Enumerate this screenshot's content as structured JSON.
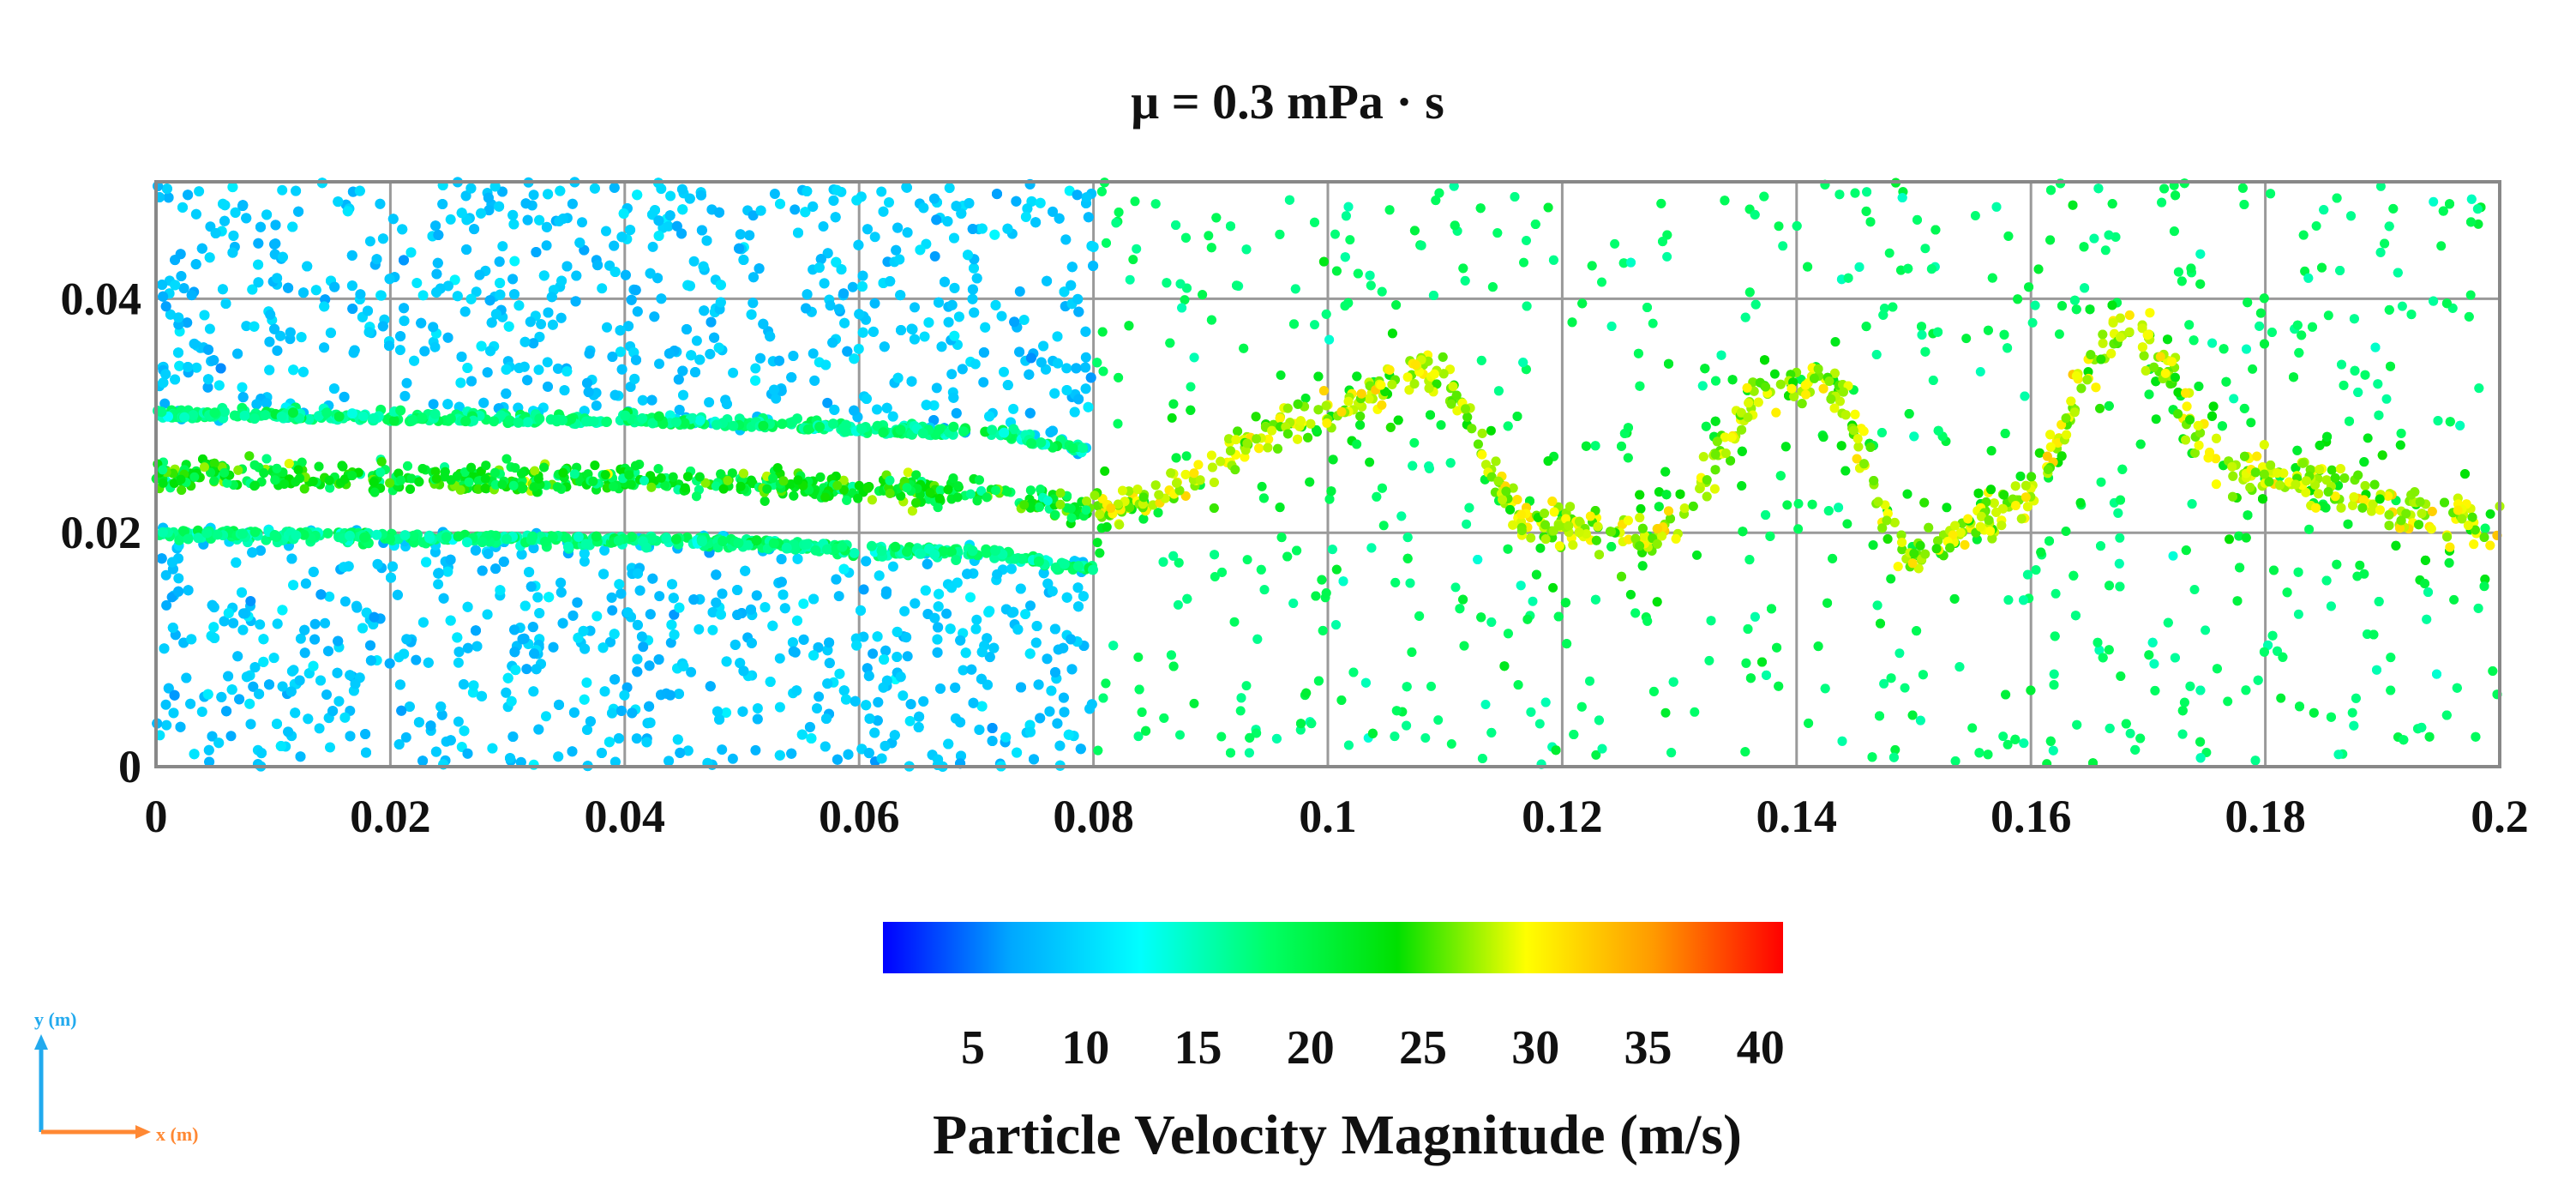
{
  "chart_data": {
    "type": "scatter",
    "title": "μ = 0.3 mPa · s",
    "xlabel": "x (m)",
    "ylabel": "y (m)",
    "xlim": [
      0,
      0.2
    ],
    "ylim": [
      0,
      0.05
    ],
    "x_ticks": [
      0,
      0.02,
      0.04,
      0.06,
      0.08,
      0.1,
      0.12,
      0.14,
      0.16,
      0.18,
      0.2
    ],
    "x_tick_labels": [
      "0",
      "0.02",
      "0.04",
      "0.06",
      "0.08",
      "0.1",
      "0.12",
      "0.14",
      "0.16",
      "0.18",
      "0.2"
    ],
    "y_ticks": [
      0,
      0.02,
      0.04
    ],
    "y_tick_labels": [
      "0",
      "0.02",
      "0.04"
    ],
    "grid": true,
    "colorbar": {
      "label": "Particle Velocity Magnitude (m/s)",
      "range": [
        1,
        41
      ],
      "ticks": [
        5,
        10,
        15,
        20,
        25,
        30,
        35,
        40
      ],
      "tick_labels": [
        "5",
        "10",
        "15",
        "20",
        "25",
        "30",
        "35",
        "40"
      ],
      "colormap": [
        "#0000ff",
        "#00a8ff",
        "#00ffff",
        "#00ff66",
        "#00e000",
        "#ffff00",
        "#ff9900",
        "#ff0000"
      ]
    },
    "field": {
      "description_series": "particles",
      "jet_centerline_y": [
        {
          "x": 0.0,
          "y": 0.025
        },
        {
          "x": 0.04,
          "y": 0.0245
        },
        {
          "x": 0.07,
          "y": 0.0235
        },
        {
          "x": 0.08,
          "y": 0.022
        },
        {
          "x": 0.1,
          "y": 0.03
        },
        {
          "x": 0.108,
          "y": 0.034
        },
        {
          "x": 0.118,
          "y": 0.021
        },
        {
          "x": 0.128,
          "y": 0.02
        },
        {
          "x": 0.138,
          "y": 0.032
        },
        {
          "x": 0.142,
          "y": 0.033
        },
        {
          "x": 0.15,
          "y": 0.018
        },
        {
          "x": 0.158,
          "y": 0.022
        },
        {
          "x": 0.168,
          "y": 0.037
        },
        {
          "x": 0.178,
          "y": 0.025
        },
        {
          "x": 0.2,
          "y": 0.021
        }
      ],
      "jet_core_speed": 28,
      "ambient_speed_upstream": 9,
      "ambient_speed_downstream": 18
    },
    "axes_indicator": {
      "y_label": "y (m)",
      "x_label": "x (m)",
      "y_color": "#22aaee",
      "x_color": "#ff8833"
    }
  }
}
